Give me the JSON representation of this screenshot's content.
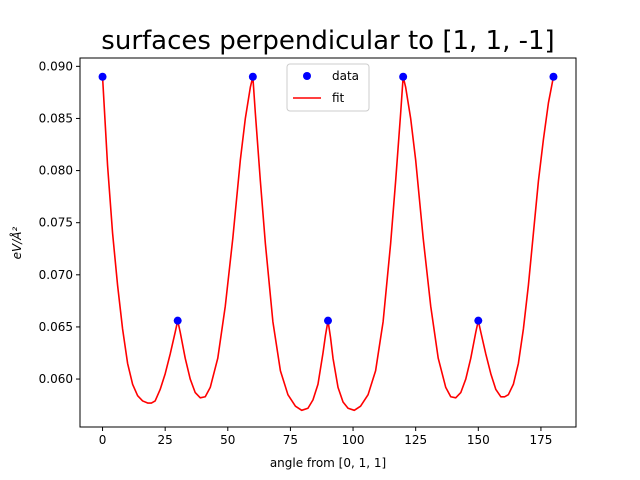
{
  "chart_data": {
    "type": "scatter",
    "title": "surfaces perpendicular to [1, 1, -1]",
    "xlabel": "angle from [0, 1, 1]",
    "ylabel": "eV/Å²",
    "xlim": [
      -9,
      189
    ],
    "ylim": [
      0.0554,
      0.0908
    ],
    "x_ticks": [
      0,
      25,
      50,
      75,
      100,
      125,
      150,
      175
    ],
    "y_ticks": [
      0.06,
      0.065,
      0.07,
      0.075,
      0.08,
      0.085,
      0.09
    ],
    "y_tick_labels": [
      "0.060",
      "0.065",
      "0.070",
      "0.075",
      "0.080",
      "0.085",
      "0.090"
    ],
    "grid": false,
    "legend": {
      "position": "top-center",
      "entries": [
        "data",
        "fit"
      ]
    },
    "series": [
      {
        "name": "data",
        "kind": "scatter",
        "color": "#0000ff",
        "x": [
          0,
          30,
          60,
          90,
          120,
          150,
          180
        ],
        "y": [
          0.089,
          0.0656,
          0.089,
          0.0656,
          0.089,
          0.0656,
          0.089
        ]
      },
      {
        "name": "fit",
        "kind": "line",
        "color": "#ff0000",
        "x": [
          0,
          2,
          4,
          6,
          8,
          10,
          12,
          14,
          16,
          18,
          19.5,
          21,
          23,
          25,
          27,
          29,
          30,
          31,
          33,
          35,
          37,
          39,
          41,
          43,
          46,
          49,
          52,
          55,
          57,
          59,
          60,
          61,
          63,
          65,
          68,
          71,
          74,
          77,
          79.5,
          82,
          84,
          86,
          88,
          89,
          90,
          91,
          92,
          94,
          96,
          98,
          100.5,
          103,
          106,
          109,
          112,
          115,
          117,
          119,
          120,
          121,
          123,
          125,
          128,
          131,
          134,
          137,
          139,
          141,
          143,
          145,
          147,
          149,
          150,
          151,
          153,
          155,
          157,
          159,
          160.5,
          162,
          164,
          166,
          168,
          170,
          172,
          174,
          176,
          178,
          180
        ],
        "y": [
          0.089,
          0.0805,
          0.074,
          0.069,
          0.0648,
          0.0615,
          0.0595,
          0.0584,
          0.0579,
          0.0577,
          0.0577,
          0.0579,
          0.059,
          0.0605,
          0.0624,
          0.0645,
          0.0656,
          0.0645,
          0.062,
          0.06,
          0.0587,
          0.0582,
          0.0583,
          0.0592,
          0.062,
          0.067,
          0.0735,
          0.081,
          0.085,
          0.088,
          0.089,
          0.0855,
          0.079,
          0.073,
          0.0655,
          0.0608,
          0.0585,
          0.0574,
          0.057,
          0.0572,
          0.058,
          0.0595,
          0.0625,
          0.0642,
          0.0656,
          0.064,
          0.062,
          0.0592,
          0.0578,
          0.0572,
          0.057,
          0.0574,
          0.0585,
          0.0608,
          0.0655,
          0.073,
          0.079,
          0.0855,
          0.089,
          0.088,
          0.085,
          0.081,
          0.0735,
          0.067,
          0.062,
          0.0592,
          0.0583,
          0.0582,
          0.0587,
          0.06,
          0.062,
          0.0645,
          0.0656,
          0.0645,
          0.0624,
          0.0605,
          0.059,
          0.0583,
          0.0583,
          0.0585,
          0.0595,
          0.0615,
          0.0648,
          0.069,
          0.074,
          0.079,
          0.083,
          0.0865,
          0.089
        ]
      }
    ]
  }
}
